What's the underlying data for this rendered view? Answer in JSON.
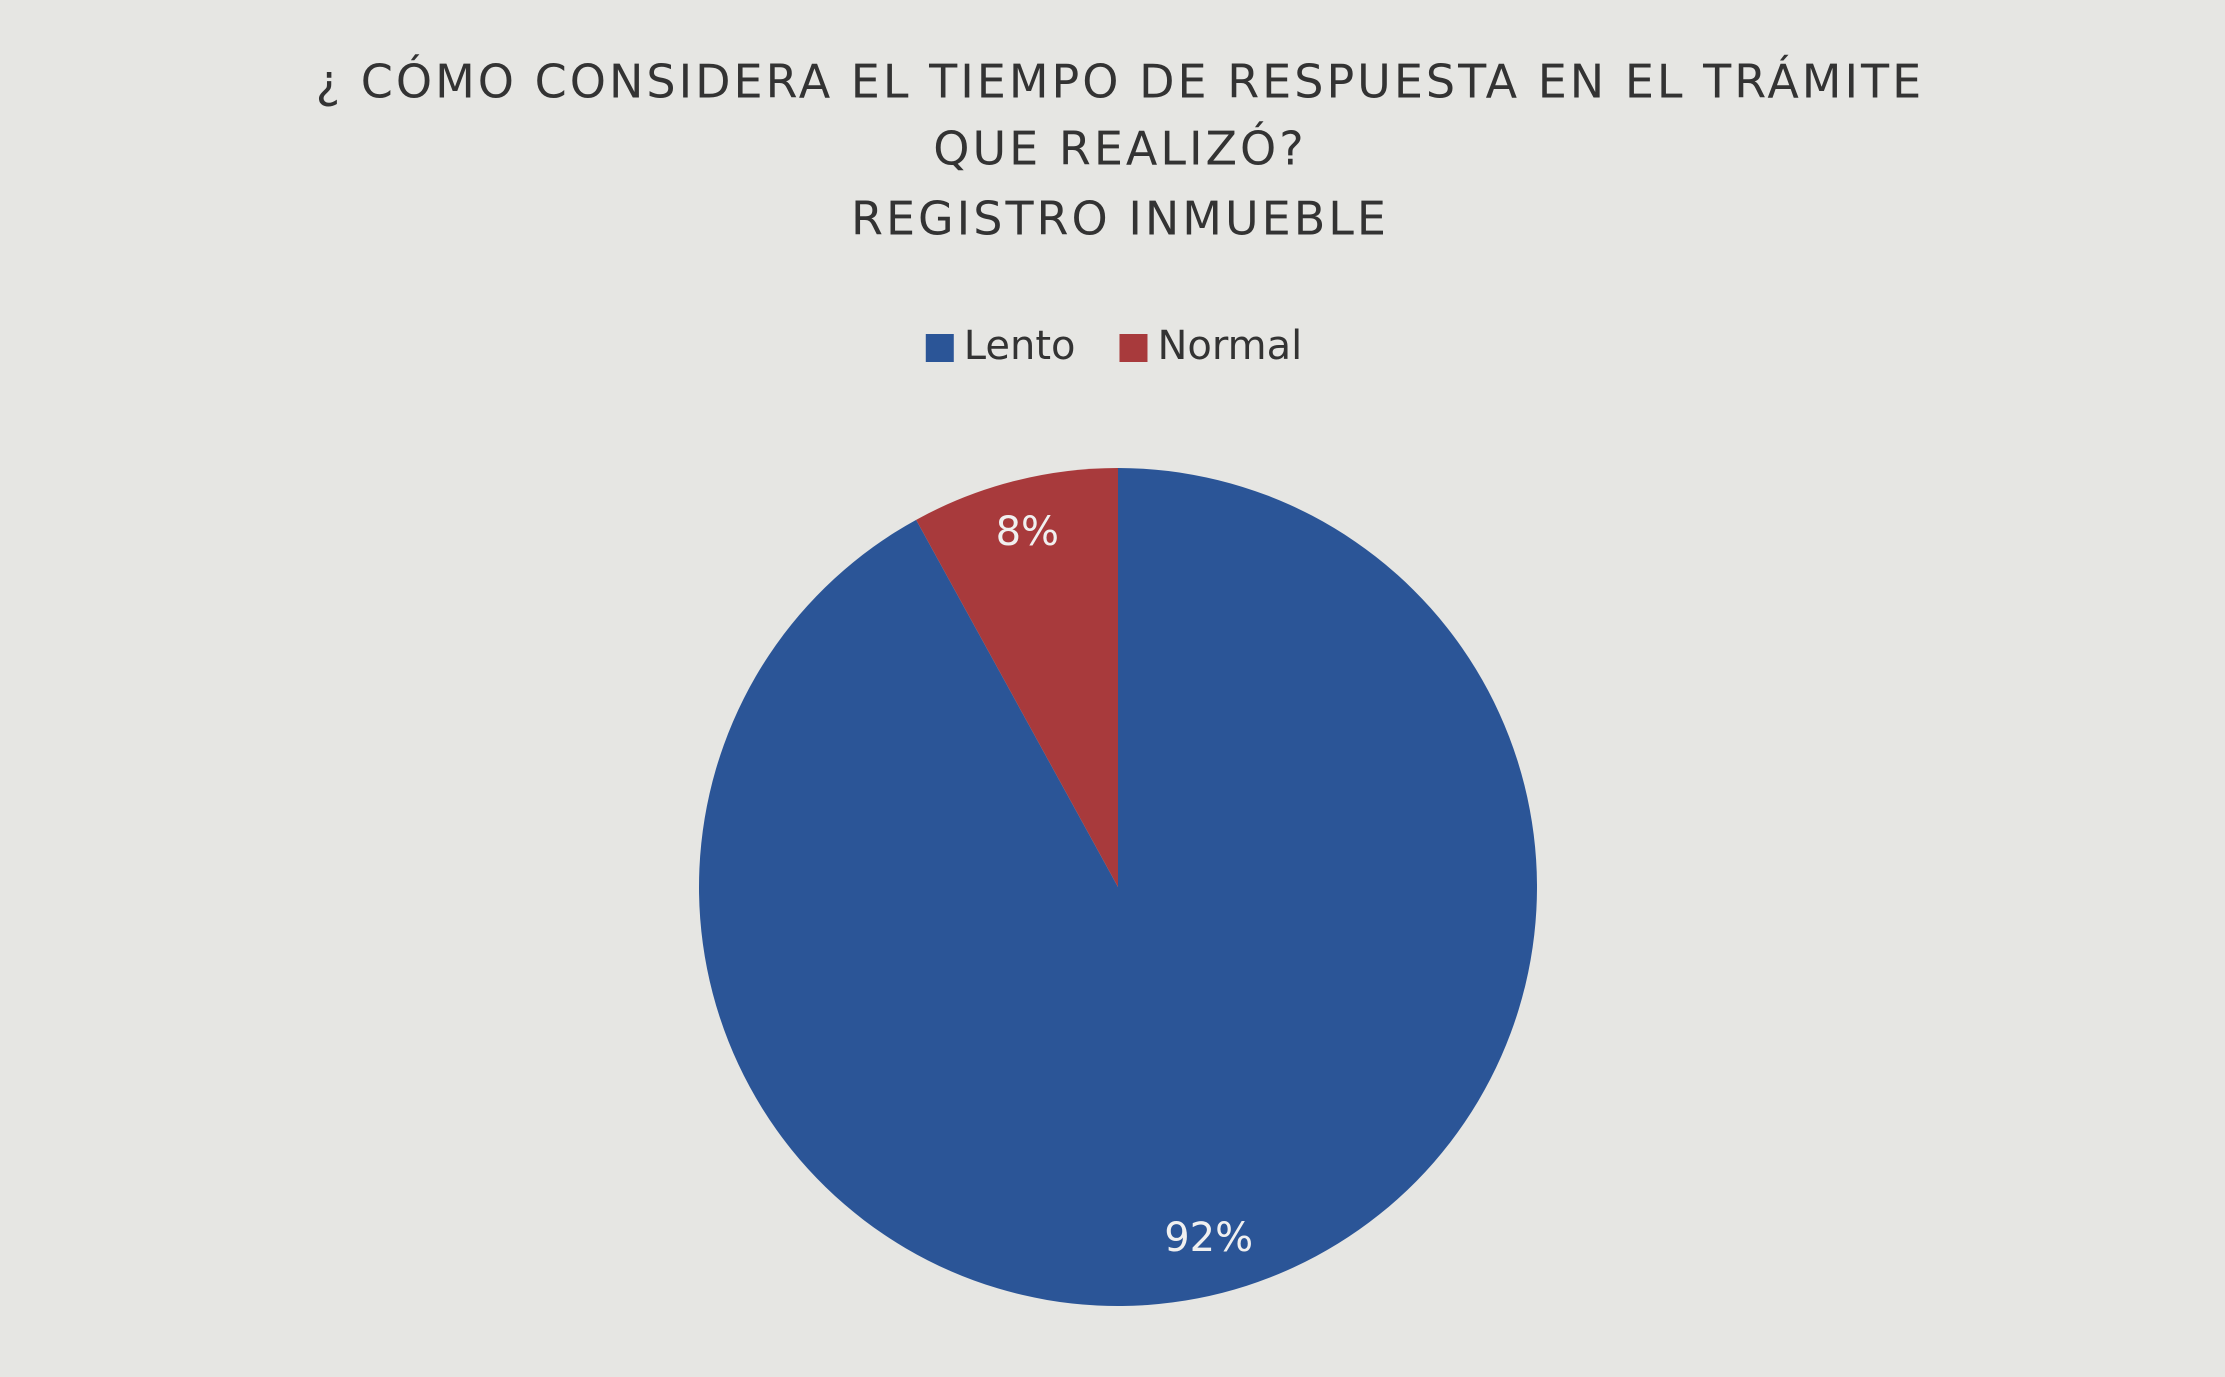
{
  "chart_data": {
    "type": "pie",
    "title": [
      "¿ CÓMO CONSIDERA EL TIEMPO DE RESPUESTA EN EL TRÁMITE",
      "QUE REALIZÓ?"
    ],
    "subtitle": "REGISTRO INMUEBLE",
    "categories": [
      "Lento",
      "Normal"
    ],
    "values": [
      92,
      8
    ],
    "value_labels": [
      "92%",
      "8%"
    ],
    "colors": [
      "#2b5597",
      "#a83a3c"
    ],
    "legend": "top"
  }
}
